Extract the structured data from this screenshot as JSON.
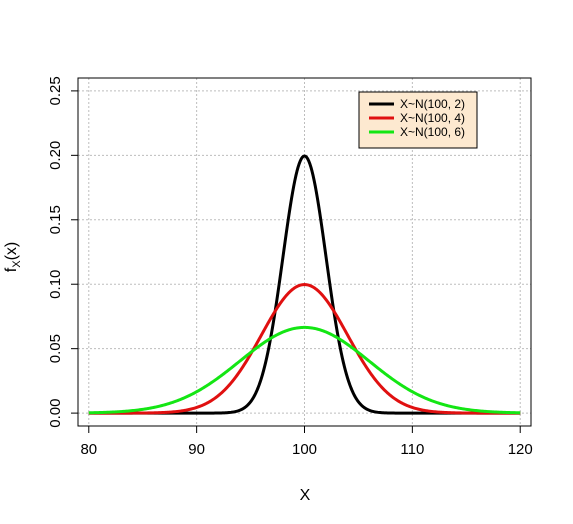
{
  "chart_data": {
    "type": "line",
    "title": "",
    "xlabel": "X",
    "ylabel_main": "f",
    "ylabel_sub": "X",
    "ylabel_rest": "(x)",
    "xlim": [
      79,
      121
    ],
    "ylim": [
      -0.01,
      0.26
    ],
    "xticks": [
      80,
      90,
      100,
      110,
      120
    ],
    "xtick_labels": [
      "80",
      "90",
      "100",
      "110",
      "120"
    ],
    "yticks": [
      0.0,
      0.05,
      0.1,
      0.15,
      0.2,
      0.25
    ],
    "ytick_labels": [
      "0.00",
      "0.05",
      "0.10",
      "0.15",
      "0.20",
      "0.25"
    ],
    "grid": true,
    "legend_position": "top-right",
    "legend_background": "#fde9d0",
    "x_domain": [
      80,
      120
    ],
    "series": [
      {
        "name": "X~N(100, 2)",
        "mean": 100,
        "sd": 2,
        "color": "#000000"
      },
      {
        "name": "X~N(100, 4)",
        "mean": 100,
        "sd": 4,
        "color": "#e01010"
      },
      {
        "name": "X~N(100, 6)",
        "mean": 100,
        "sd": 6,
        "color": "#14e614"
      }
    ]
  }
}
